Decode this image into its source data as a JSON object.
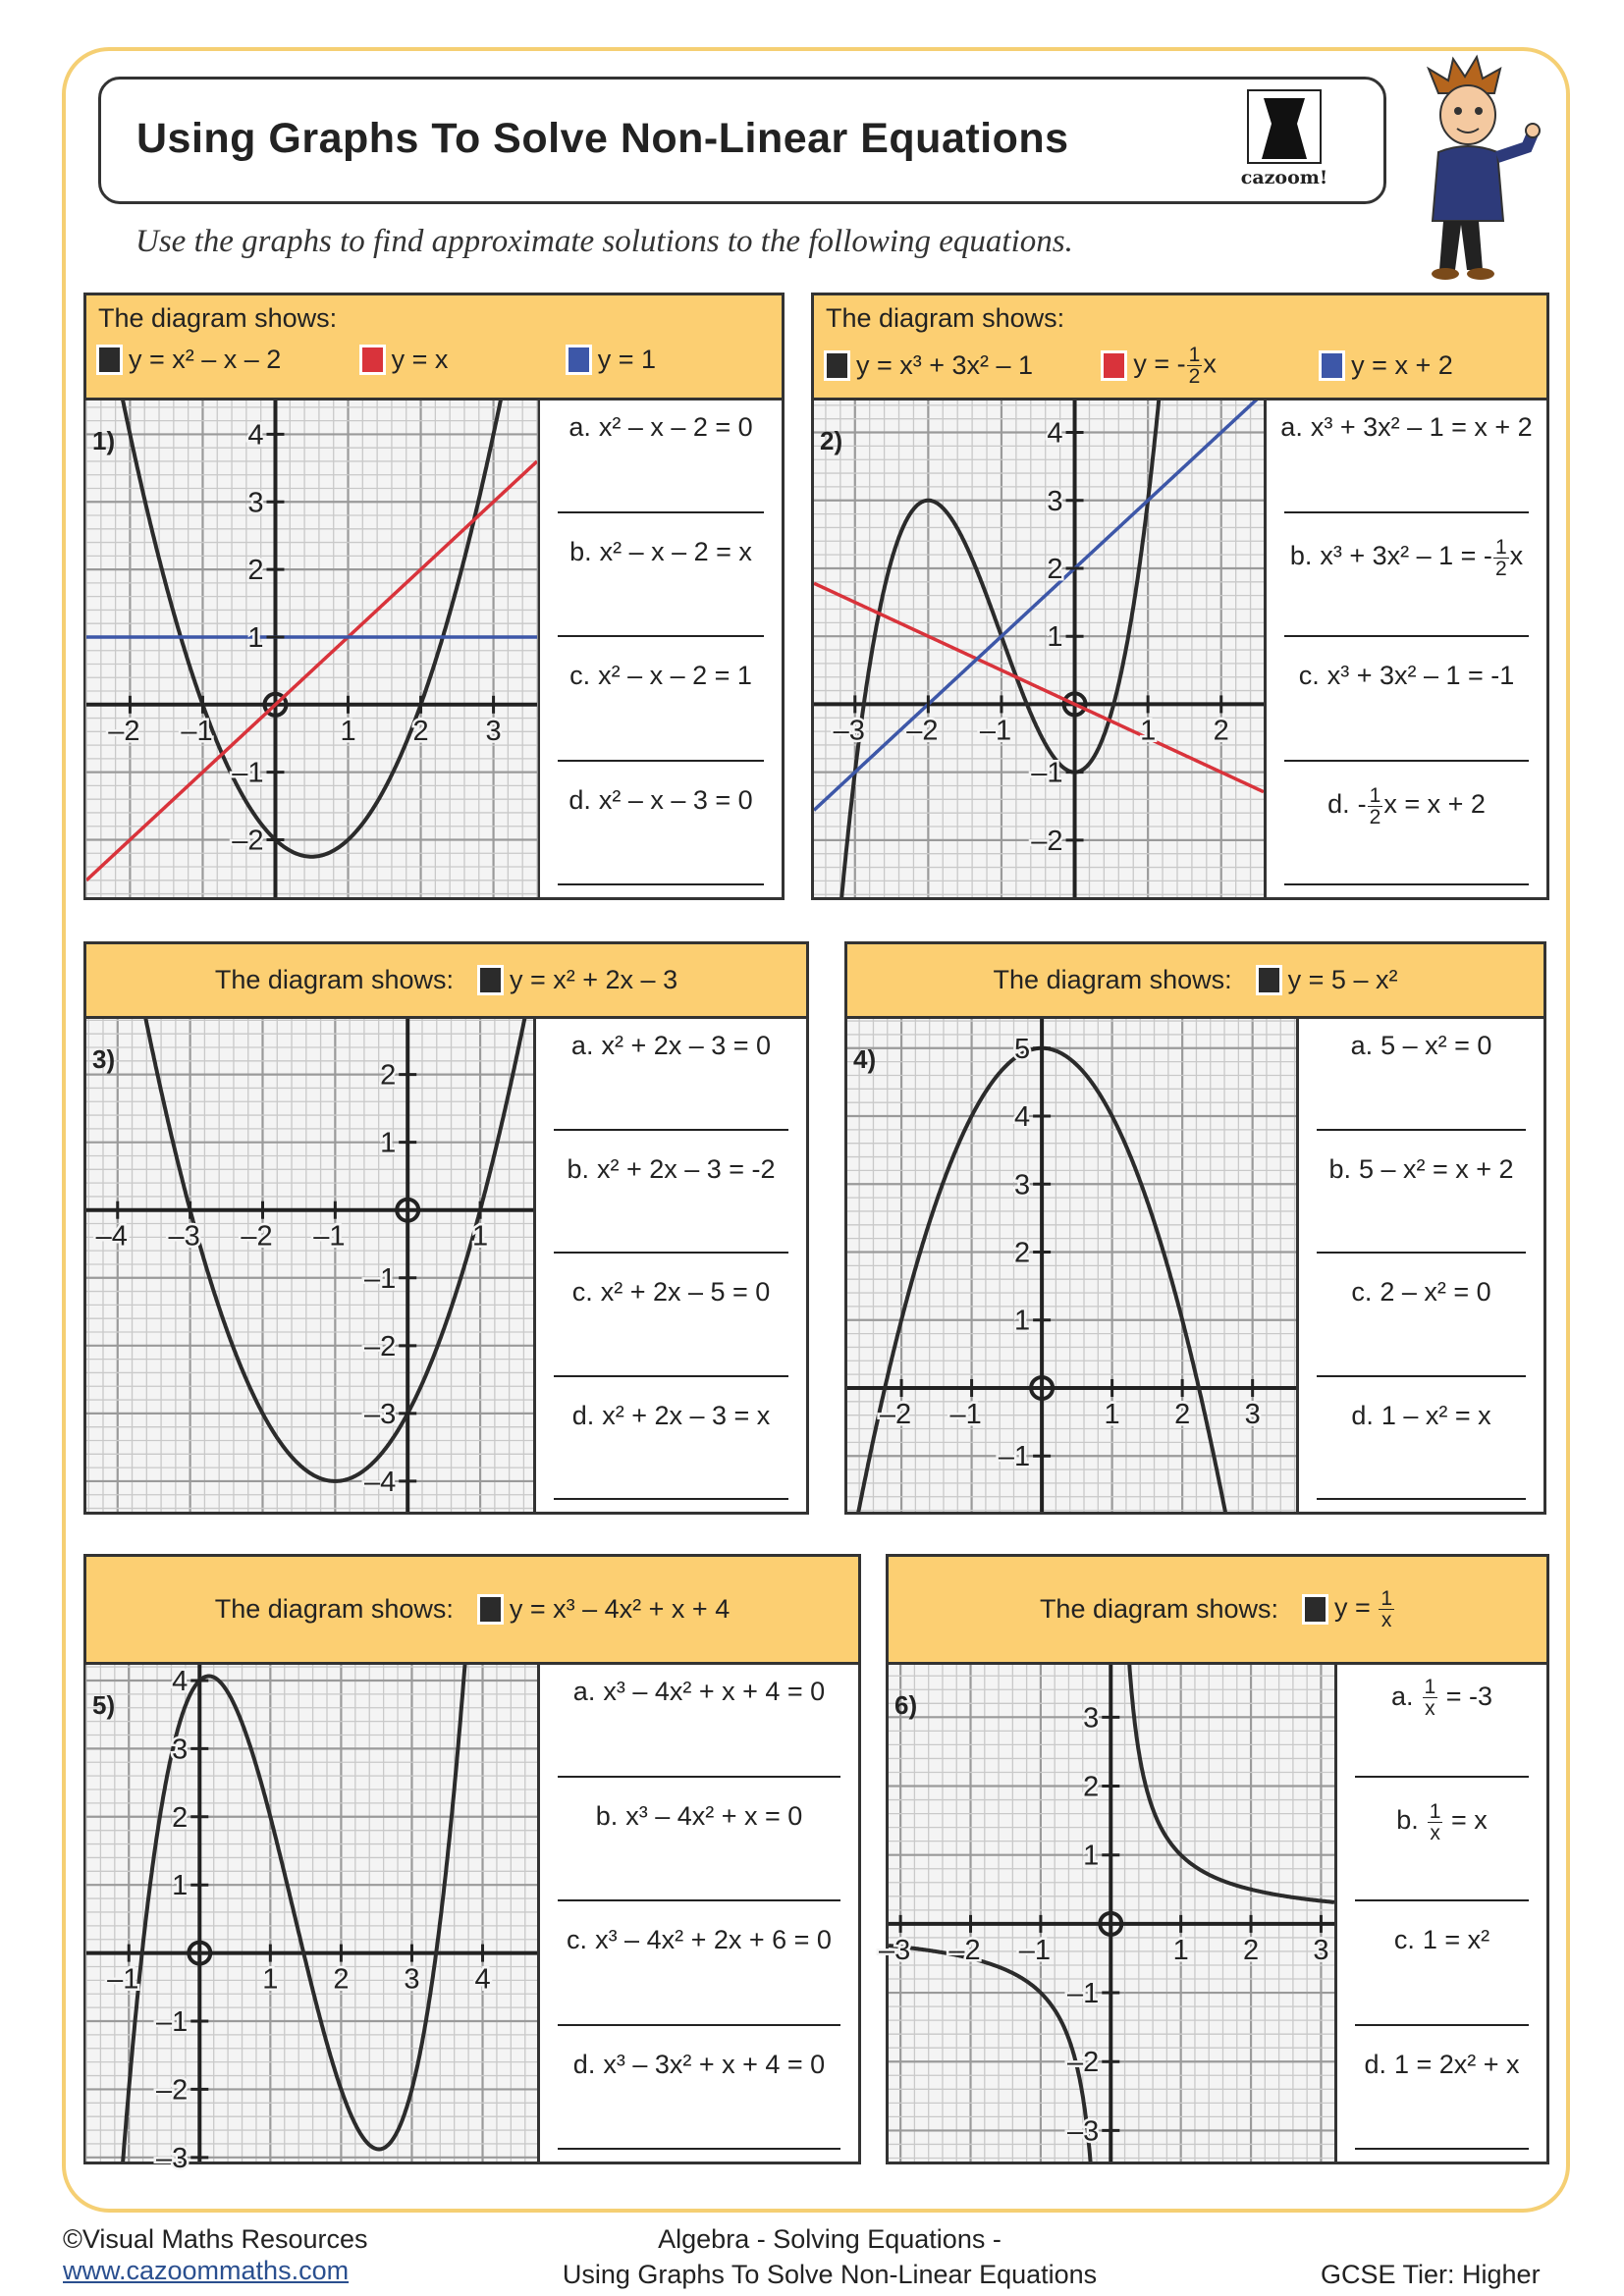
{
  "title": "Using Graphs To Solve Non-Linear Equations",
  "logo_text": "cazoom!",
  "instruction": "Use the graphs to find approximate solutions to the following equations.",
  "colors": {
    "black_curve": "#2b2b2b",
    "red_line": "#d9333b",
    "blue_line": "#3d57a8",
    "header": "#fccf72",
    "border": "#f5cf73"
  },
  "panels": [
    {
      "number": "1)",
      "header": "The diagram shows:",
      "legend": [
        {
          "color": "#2b2b2b",
          "eq": "y = x² – x – 2"
        },
        {
          "color": "#d9333b",
          "eq": "y = x"
        },
        {
          "color": "#3d57a8",
          "eq": "y = 1"
        }
      ],
      "xlim": [
        -2.6,
        3.6
      ],
      "ylim": [
        -2.85,
        4.5
      ],
      "x_ticks": [
        "–2",
        "–1",
        "1",
        "2",
        "3"
      ],
      "x_tick_values": [
        -2,
        -1,
        1,
        2,
        3
      ],
      "y_ticks": [
        "–2",
        "–1",
        "1",
        "2",
        "3",
        "4"
      ],
      "y_tick_values": [
        -2,
        -1,
        1,
        2,
        3,
        4
      ],
      "questions": [
        {
          "label": "a.",
          "eq": "x² – x – 2 = 0"
        },
        {
          "label": "b.",
          "eq": "x² – x – 2 = x"
        },
        {
          "label": "c.",
          "eq": "x² – x – 2 = 1"
        },
        {
          "label": "d.",
          "eq": "x² – x – 3 = 0"
        }
      ]
    },
    {
      "number": "2)",
      "header": "The diagram shows:",
      "legend": [
        {
          "color": "#2b2b2b",
          "eq": "y = x³ + 3x² – 1"
        },
        {
          "color": "#d9333b",
          "eq": "y = -",
          "frac_num": "1",
          "frac_den": "2",
          "eq_post": "x"
        },
        {
          "color": "#3d57a8",
          "eq": "y = x + 2"
        }
      ],
      "xlim": [
        -3.56,
        2.58
      ],
      "ylim": [
        -2.84,
        4.47
      ],
      "x_ticks": [
        "–3",
        "–2",
        "–1",
        "1",
        "2"
      ],
      "x_tick_values": [
        -3,
        -2,
        -1,
        1,
        2
      ],
      "y_ticks": [
        "–2",
        "–1",
        "1",
        "2",
        "3",
        "4"
      ],
      "y_tick_values": [
        -2,
        -1,
        1,
        2,
        3,
        4
      ],
      "questions": [
        {
          "label": "a.",
          "eq": "x³ + 3x² – 1 = x + 2"
        },
        {
          "label": "b.",
          "eq": "x³ + 3x² – 1 = -",
          "frac_num": "1",
          "frac_den": "2",
          "eq_post": "x"
        },
        {
          "label": "c.",
          "eq": "x³ + 3x² – 1 = -1"
        },
        {
          "label": "d.",
          "eq": "-",
          "frac_num": "1",
          "frac_den": "2",
          "eq_post": "x = x + 2"
        }
      ]
    },
    {
      "number": "3)",
      "header": "The diagram shows:",
      "legend": [
        {
          "color": "#2b2b2b",
          "eq": "y = x² + 2x – 3"
        }
      ],
      "xlim": [
        -4.43,
        1.73
      ],
      "ylim": [
        -4.45,
        2.82
      ],
      "x_ticks": [
        "–4",
        "–3",
        "–2",
        "–1",
        "1"
      ],
      "x_tick_values": [
        -4,
        -3,
        -2,
        -1,
        1
      ],
      "y_ticks": [
        "–4",
        "–3",
        "–2",
        "–1",
        "1",
        "2"
      ],
      "y_tick_values": [
        -4,
        -3,
        -2,
        -1,
        1,
        2
      ],
      "questions": [
        {
          "label": "a.",
          "eq": "x² + 2x – 3 = 0"
        },
        {
          "label": "b.",
          "eq": "x² + 2x – 3 = -2"
        },
        {
          "label": "c.",
          "eq": "x² + 2x – 5 = 0"
        },
        {
          "label": "d.",
          "eq": "x² + 2x – 3 = x"
        }
      ]
    },
    {
      "number": "4)",
      "header": "The diagram shows:",
      "legend": [
        {
          "color": "#2b2b2b",
          "eq": "y = 5 – x²"
        }
      ],
      "xlim": [
        -2.77,
        3.62
      ],
      "ylim": [
        -1.82,
        5.43
      ],
      "x_ticks": [
        "–2",
        "–1",
        "1",
        "2",
        "3"
      ],
      "x_tick_values": [
        -2,
        -1,
        1,
        2,
        3
      ],
      "y_ticks": [
        "–1",
        "1",
        "2",
        "3",
        "4",
        "5"
      ],
      "y_tick_values": [
        -1,
        1,
        2,
        3,
        4,
        5
      ],
      "questions": [
        {
          "label": "a.",
          "eq": "5 – x² = 0"
        },
        {
          "label": "b.",
          "eq": "5 – x² = x + 2"
        },
        {
          "label": "c.",
          "eq": "2 – x² = 0"
        },
        {
          "label": "d.",
          "eq": "1 – x² = x"
        }
      ]
    },
    {
      "number": "5)",
      "header": "The diagram shows:",
      "legend": [
        {
          "color": "#2b2b2b",
          "eq": "y = x³ – 4x² + x + 4"
        }
      ],
      "xlim": [
        -1.6,
        4.77
      ],
      "ylim": [
        -3.06,
        4.23
      ],
      "x_ticks": [
        "–1",
        "1",
        "2",
        "3",
        "4"
      ],
      "x_tick_values": [
        -1,
        1,
        2,
        3,
        4
      ],
      "y_ticks": [
        "–3",
        "–2",
        "–1",
        "1",
        "2",
        "3",
        "4"
      ],
      "y_tick_values": [
        -3,
        -2,
        -1,
        1,
        2,
        3,
        4
      ],
      "questions": [
        {
          "label": "a.",
          "eq": "x³ – 4x² + x + 4 = 0"
        },
        {
          "label": "b.",
          "eq": "x³ – 4x² + x = 0"
        },
        {
          "label": "c.",
          "eq": "x³ – 4x² + 2x + 6 = 0"
        },
        {
          "label": "d.",
          "eq": "x³ – 3x² + x + 4 = 0"
        }
      ]
    },
    {
      "number": "6)",
      "header": "The diagram shows:",
      "legend": [
        {
          "color": "#2b2b2b",
          "eq": "y = ",
          "frac_num": "1",
          "frac_den": "x"
        }
      ],
      "xlim": [
        -3.17,
        3.19
      ],
      "ylim": [
        -3.45,
        3.76
      ],
      "x_ticks": [
        "–3",
        "–2",
        "–1",
        "1",
        "2",
        "3"
      ],
      "x_tick_values": [
        -3,
        -2,
        -1,
        1,
        2,
        3
      ],
      "y_ticks": [
        "–3",
        "–2",
        "–1",
        "1",
        "2",
        "3"
      ],
      "y_tick_values": [
        -3,
        -2,
        -1,
        1,
        2,
        3
      ],
      "questions": [
        {
          "label": "a.",
          "eq": "",
          "frac_num": "1",
          "frac_den": "x",
          "eq_post": " = -3"
        },
        {
          "label": "b.",
          "eq": "",
          "frac_num": "1",
          "frac_den": "x",
          "eq_post": " = x"
        },
        {
          "label": "c.",
          "eq": "1 = x²"
        },
        {
          "label": "d.",
          "eq": "1 = 2x² + x"
        }
      ]
    }
  ],
  "footer": {
    "copyright": "©Visual Maths Resources",
    "website": "www.cazoommaths.com",
    "topic_line1": "Algebra - Solving Equations -",
    "topic_line2": "Using Graphs To Solve Non-Linear Equations",
    "tier": "GCSE Tier: Higher"
  }
}
